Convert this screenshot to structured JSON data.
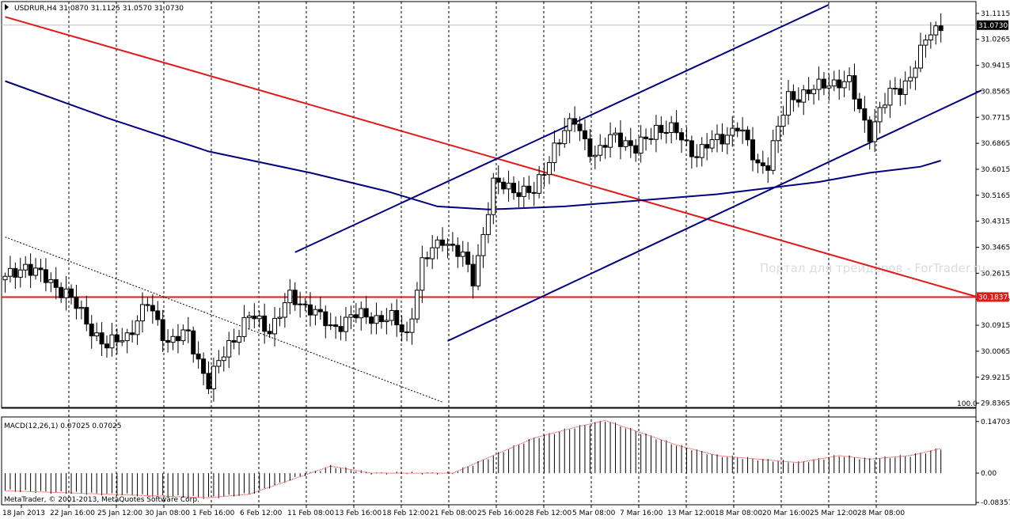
{
  "header": {
    "title": "USDRUR,H4 31.0870 31.1125 31.0570 31.0730",
    "watermark": "Портал для трейдеров - ForTrader.ru",
    "copyright": "MetaTrader, © 2001-2013, MetaQuotes Software Corp.",
    "macd_label": "MACD(12,26,1) 0.07025 0.07025",
    "level_label": "100.0"
  },
  "colors": {
    "candle": "#000000",
    "ma": "#000080",
    "channel": "#000080",
    "red_line": "#e31818",
    "price_tag_bg": "#000000",
    "level_tag_bg": "#e31818"
  },
  "chart_data": {
    "type": "candlestick",
    "symbol": "USDRUR",
    "timeframe": "H4",
    "last_price": "31.0730",
    "horizontal_level": "30.1837",
    "price_axis_ticks": [
      "31.1115",
      "31.0265",
      "30.9415",
      "30.8565",
      "30.7715",
      "30.6865",
      "30.6015",
      "30.5165",
      "30.4315",
      "30.3465",
      "30.2615",
      "30.1765",
      "30.0915",
      "30.0065",
      "29.9215",
      "29.8365"
    ],
    "price_range": [
      29.82,
      31.15
    ],
    "macd_axis_ticks": [
      "0.14703",
      "0.00",
      "-0.08357"
    ],
    "macd_range": [
      -0.09,
      0.16
    ],
    "time_labels": [
      "18 Jan 2013",
      "22 Jan 16:00",
      "25 Jan 12:00",
      "30 Jan 08:00",
      "1 Feb 16:00",
      "6 Feb 12:00",
      "11 Feb 08:00",
      "13 Feb 16:00",
      "18 Feb 12:00",
      "21 Feb 08:00",
      "25 Feb 16:00",
      "28 Feb 12:00",
      "5 Mar 08:00",
      "7 Mar 16:00",
      "13 Mar 12:00",
      "18 Mar 08:00",
      "20 Mar 16:00",
      "25 Mar 12:00",
      "28 Mar 08:00"
    ],
    "close_anchors": [
      [
        0,
        30.24
      ],
      [
        4,
        30.29
      ],
      [
        8,
        30.24
      ],
      [
        12,
        30.2
      ],
      [
        16,
        30.1
      ],
      [
        20,
        30.02
      ],
      [
        24,
        30.06
      ],
      [
        28,
        30.16
      ],
      [
        32,
        30.04
      ],
      [
        36,
        30.06
      ],
      [
        40,
        29.9
      ],
      [
        44,
        30.03
      ],
      [
        48,
        30.12
      ],
      [
        52,
        30.08
      ],
      [
        56,
        30.18
      ],
      [
        60,
        30.15
      ],
      [
        64,
        30.08
      ],
      [
        68,
        30.12
      ],
      [
        72,
        30.12
      ],
      [
        76,
        30.11
      ],
      [
        79,
        30.06
      ],
      [
        82,
        30.29
      ],
      [
        86,
        30.38
      ],
      [
        90,
        30.31
      ],
      [
        92,
        30.24
      ],
      [
        96,
        30.55
      ],
      [
        100,
        30.54
      ],
      [
        104,
        30.52
      ],
      [
        108,
        30.68
      ],
      [
        112,
        30.76
      ],
      [
        116,
        30.64
      ],
      [
        120,
        30.72
      ],
      [
        124,
        30.66
      ],
      [
        128,
        30.74
      ],
      [
        132,
        30.72
      ],
      [
        136,
        30.65
      ],
      [
        140,
        30.7
      ],
      [
        144,
        30.74
      ],
      [
        148,
        30.62
      ],
      [
        150,
        30.62
      ],
      [
        154,
        30.84
      ],
      [
        158,
        30.85
      ],
      [
        162,
        30.89
      ],
      [
        166,
        30.88
      ],
      [
        170,
        30.72
      ],
      [
        174,
        30.85
      ],
      [
        178,
        30.9
      ],
      [
        182,
        31.06
      ],
      [
        184,
        31.07
      ]
    ],
    "moving_average": [
      [
        0,
        30.89
      ],
      [
        20,
        30.77
      ],
      [
        40,
        30.66
      ],
      [
        60,
        30.59
      ],
      [
        75,
        30.53
      ],
      [
        85,
        30.48
      ],
      [
        95,
        30.47
      ],
      [
        110,
        30.48
      ],
      [
        125,
        30.5
      ],
      [
        140,
        30.52
      ],
      [
        150,
        30.54
      ],
      [
        160,
        30.56
      ],
      [
        170,
        30.59
      ],
      [
        180,
        30.61
      ],
      [
        184,
        30.63
      ]
    ],
    "red_trendline": [
      [
        0,
        31.1
      ],
      [
        192,
        30.18
      ]
    ],
    "channel_upper": [
      [
        57,
        30.33
      ],
      [
        162,
        31.14
      ]
    ],
    "channel_lower": [
      [
        87,
        30.04
      ],
      [
        192,
        30.86
      ]
    ],
    "dotted_line": [
      [
        0,
        30.38
      ],
      [
        86,
        29.84
      ]
    ],
    "macd_hist": [
      [
        0,
        -0.05
      ],
      [
        20,
        -0.06
      ],
      [
        40,
        -0.07
      ],
      [
        48,
        -0.06
      ],
      [
        56,
        -0.02
      ],
      [
        64,
        0.02
      ],
      [
        72,
        0.0
      ],
      [
        80,
        0.0
      ],
      [
        88,
        0.0
      ],
      [
        96,
        0.05
      ],
      [
        104,
        0.1
      ],
      [
        112,
        0.13
      ],
      [
        118,
        0.15
      ],
      [
        124,
        0.12
      ],
      [
        132,
        0.08
      ],
      [
        140,
        0.05
      ],
      [
        148,
        0.04
      ],
      [
        156,
        0.03
      ],
      [
        164,
        0.05
      ],
      [
        170,
        0.04
      ],
      [
        178,
        0.05
      ],
      [
        184,
        0.07
      ]
    ]
  }
}
